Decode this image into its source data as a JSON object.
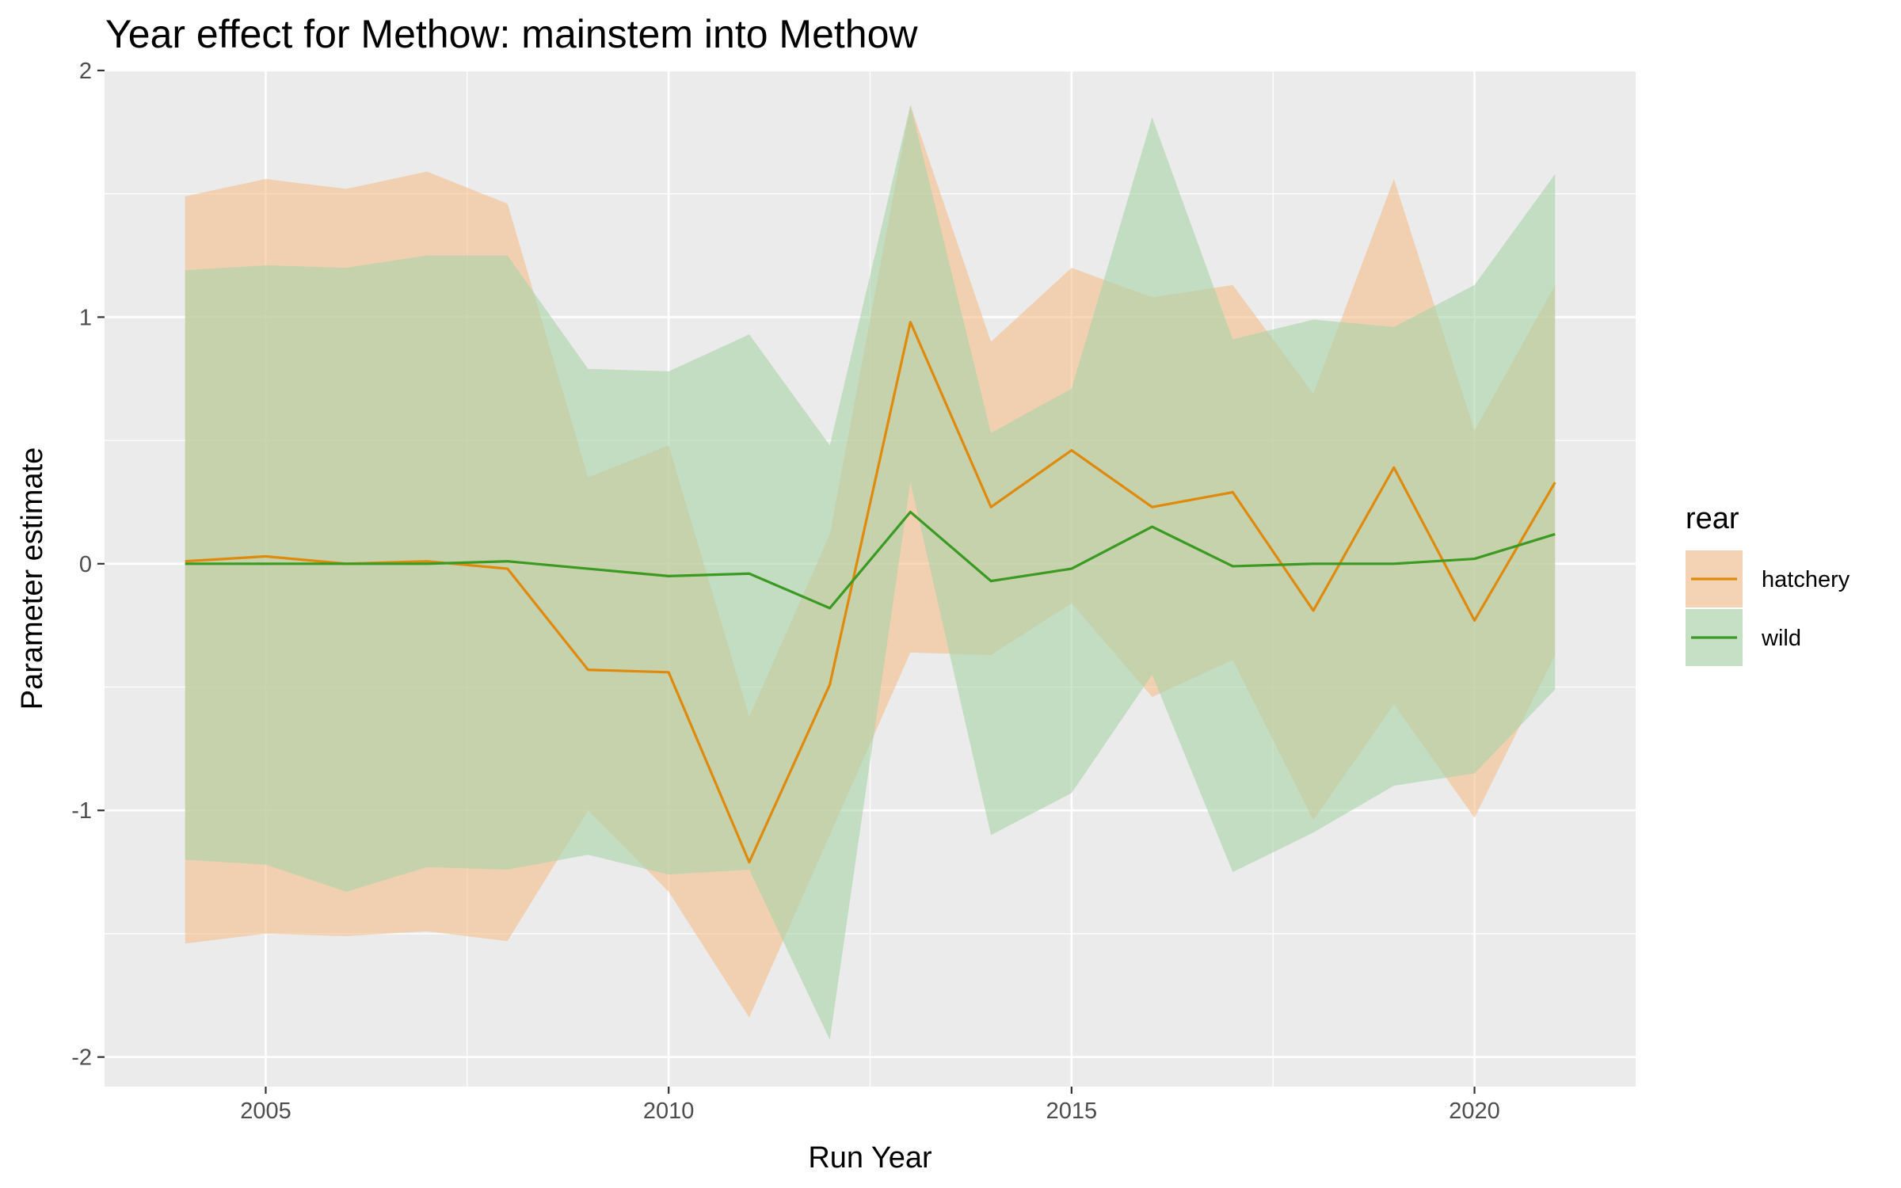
{
  "chart_data": {
    "type": "line",
    "title": "Year effect for Methow: mainstem into Methow",
    "xlabel": "Run Year",
    "ylabel": "Parameter estimate",
    "xlim": [
      2003,
      2022
    ],
    "ylim": [
      -2.12,
      2.0
    ],
    "x_ticks": [
      2005,
      2010,
      2015,
      2020
    ],
    "y_ticks": [
      -2,
      -1,
      0,
      1,
      2
    ],
    "grid": true,
    "legend": {
      "title": "rear",
      "position": "right"
    },
    "x": [
      2004,
      2005,
      2006,
      2007,
      2008,
      2009,
      2010,
      2011,
      2012,
      2013,
      2014,
      2015,
      2016,
      2017,
      2018,
      2019,
      2020,
      2021
    ],
    "series": [
      {
        "name": "hatchery",
        "line_color": "#E08A0C",
        "fill_color": "#F5BE8C",
        "values": [
          0.01,
          0.03,
          0.0,
          0.01,
          -0.02,
          -0.43,
          -0.44,
          -1.21,
          -0.49,
          0.98,
          0.23,
          0.46,
          0.23,
          0.29,
          -0.19,
          0.39,
          -0.23,
          0.33
        ],
        "upper": [
          1.49,
          1.56,
          1.52,
          1.59,
          1.46,
          0.35,
          0.48,
          -0.62,
          0.12,
          1.86,
          0.9,
          1.2,
          1.08,
          1.13,
          0.69,
          1.56,
          0.54,
          1.13
        ],
        "lower": [
          -1.54,
          -1.5,
          -1.51,
          -1.49,
          -1.53,
          -1.0,
          -1.33,
          -1.84,
          -1.1,
          -0.36,
          -0.37,
          -0.16,
          -0.54,
          -0.39,
          -1.04,
          -0.57,
          -1.03,
          -0.37
        ]
      },
      {
        "name": "wild",
        "line_color": "#3B9A22",
        "fill_color": "#A8D3A6",
        "values": [
          0.0,
          0.0,
          0.0,
          0.0,
          0.01,
          -0.02,
          -0.05,
          -0.04,
          -0.18,
          0.21,
          -0.07,
          -0.02,
          0.15,
          -0.01,
          0.0,
          0.0,
          0.02,
          0.12
        ],
        "upper": [
          1.19,
          1.21,
          1.2,
          1.25,
          1.25,
          0.79,
          0.78,
          0.93,
          0.48,
          1.86,
          0.53,
          0.71,
          1.81,
          0.91,
          0.99,
          0.96,
          1.13,
          1.58
        ],
        "lower": [
          -1.2,
          -1.22,
          -1.33,
          -1.23,
          -1.24,
          -1.18,
          -1.26,
          -1.24,
          -1.93,
          0.33,
          -1.1,
          -0.93,
          -0.45,
          -1.25,
          -1.09,
          -0.9,
          -0.85,
          -0.51
        ]
      }
    ]
  }
}
